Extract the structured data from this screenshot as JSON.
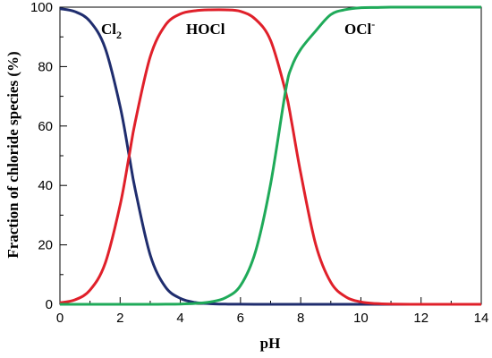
{
  "chart_data": {
    "type": "line",
    "title": "",
    "xlabel": "pH",
    "ylabel": "Fraction of chloride  species (%)",
    "xlim": [
      0,
      14
    ],
    "ylim": [
      0,
      100
    ],
    "xticks": [
      0,
      2,
      4,
      6,
      8,
      10,
      12,
      14
    ],
    "yticks": [
      0,
      20,
      40,
      60,
      80,
      100
    ],
    "grid": false,
    "legend": "inline labels",
    "x": [
      0,
      0.5,
      1,
      1.5,
      2,
      2.3,
      2.5,
      3,
      3.5,
      4,
      4.5,
      5,
      5.5,
      6,
      6.5,
      7,
      7.5,
      7.7,
      8,
      8.5,
      9,
      9.5,
      10,
      10.5,
      11,
      12,
      13,
      14
    ],
    "series": [
      {
        "name": "Cl2",
        "label_main": "Cl",
        "label_sub": "2",
        "color": "#1f2d6e",
        "values": [
          99.5,
          98.5,
          95.2,
          86.3,
          66.6,
          50,
          38.7,
          16.6,
          5.9,
          2.0,
          0.6,
          0.2,
          0.06,
          0.02,
          0,
          0,
          0,
          0,
          0,
          0,
          0,
          0,
          0,
          0,
          0,
          0,
          0,
          0
        ]
      },
      {
        "name": "HOCl",
        "label_main": "HOCl",
        "label_sub": "",
        "color": "#e0202a",
        "values": [
          0.5,
          1.5,
          4.8,
          13.7,
          33.4,
          50,
          61.3,
          83.3,
          93.9,
          97.7,
          98.8,
          99.1,
          99.1,
          98.6,
          95.9,
          88.8,
          71.5,
          61.3,
          44.2,
          20.1,
          7.4,
          2.5,
          0.8,
          0.25,
          0.08,
          0,
          0,
          0
        ]
      },
      {
        "name": "OCl-",
        "label_main": "OCl",
        "label_sub": "-",
        "color": "#1faa59",
        "values": [
          0,
          0,
          0,
          0,
          0,
          0,
          0,
          0,
          0.02,
          0.09,
          0.3,
          0.8,
          2.2,
          6.3,
          17.8,
          40.5,
          72.0,
          79.9,
          85.8,
          92.0,
          97.5,
          99.2,
          99.8,
          99.9,
          100,
          100,
          100,
          100
        ]
      }
    ]
  }
}
